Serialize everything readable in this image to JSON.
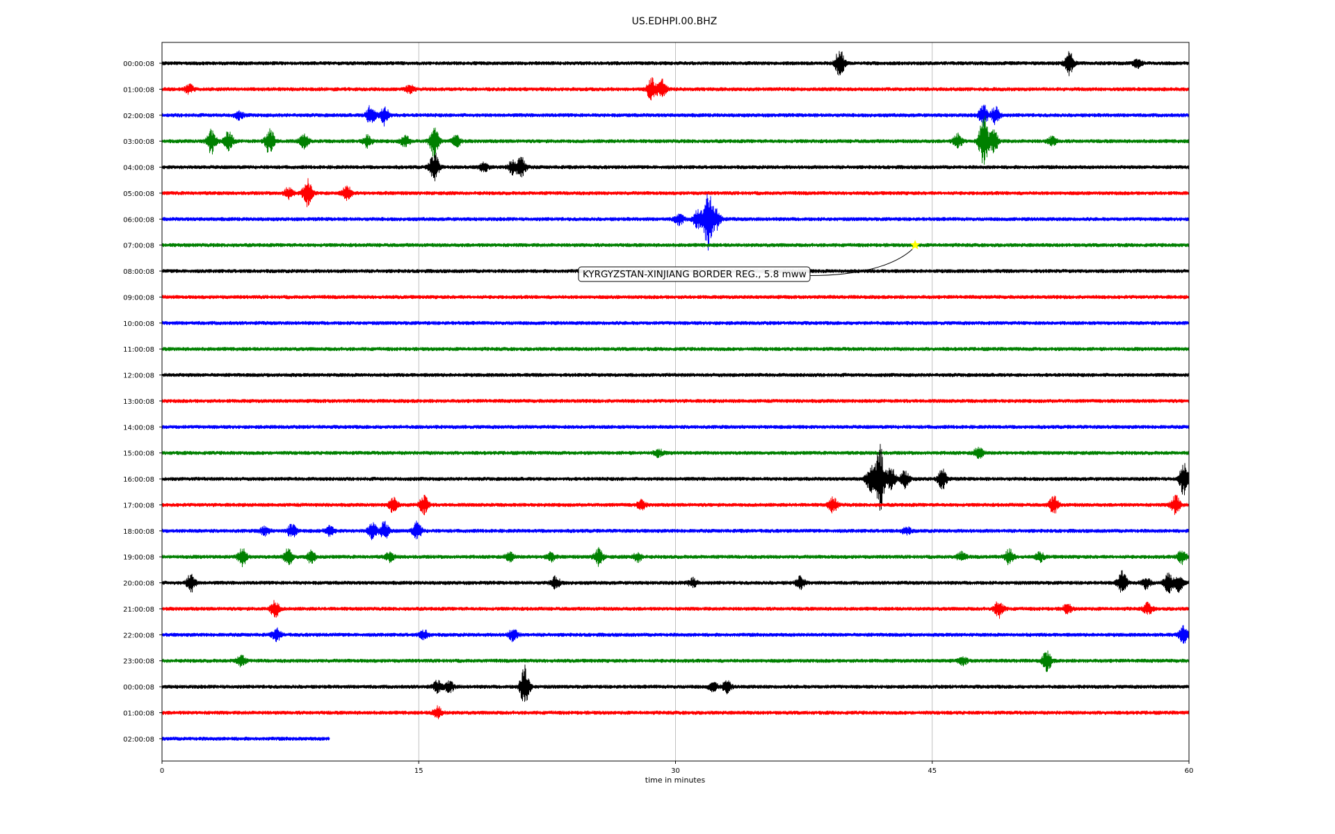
{
  "chart_data": {
    "type": "line",
    "title": "US.EDHPI.00.BHZ",
    "xlabel": "time in minutes",
    "ylabel": "",
    "xlim": [
      0,
      60
    ],
    "xticks": [
      0,
      15,
      30,
      45,
      60
    ],
    "grid": "vertical lines at x = 15, 30, 45",
    "trace_colors": [
      "#000000",
      "#ff0000",
      "#0000ff",
      "#008000"
    ],
    "rows": [
      {
        "label": "00:00:08",
        "end": 60,
        "events": [
          {
            "x": 39.6,
            "amp": 20
          },
          {
            "x": 53.0,
            "amp": 16
          },
          {
            "x": 57.0,
            "amp": 6
          }
        ]
      },
      {
        "label": "01:00:08",
        "end": 60,
        "events": [
          {
            "x": 1.6,
            "amp": 6
          },
          {
            "x": 14.5,
            "amp": 5
          },
          {
            "x": 28.6,
            "amp": 16
          },
          {
            "x": 29.2,
            "amp": 14
          }
        ]
      },
      {
        "label": "02:00:08",
        "end": 60,
        "events": [
          {
            "x": 4.5,
            "amp": 5
          },
          {
            "x": 12.2,
            "amp": 14
          },
          {
            "x": 13.0,
            "amp": 14
          },
          {
            "x": 48.0,
            "amp": 14
          },
          {
            "x": 48.7,
            "amp": 12
          }
        ]
      },
      {
        "label": "03:00:08",
        "end": 60,
        "events": [
          {
            "x": 2.9,
            "amp": 18
          },
          {
            "x": 3.9,
            "amp": 14
          },
          {
            "x": 6.3,
            "amp": 20
          },
          {
            "x": 8.3,
            "amp": 10
          },
          {
            "x": 12.0,
            "amp": 8
          },
          {
            "x": 14.2,
            "amp": 8
          },
          {
            "x": 15.9,
            "amp": 22
          },
          {
            "x": 17.2,
            "amp": 8
          },
          {
            "x": 46.5,
            "amp": 10
          },
          {
            "x": 48.0,
            "amp": 40
          },
          {
            "x": 48.6,
            "amp": 16
          },
          {
            "x": 52.0,
            "amp": 6
          }
        ]
      },
      {
        "label": "04:00:08",
        "end": 60,
        "events": [
          {
            "x": 15.9,
            "amp": 22
          },
          {
            "x": 18.8,
            "amp": 6
          },
          {
            "x": 20.5,
            "amp": 10
          },
          {
            "x": 21.0,
            "amp": 14
          }
        ]
      },
      {
        "label": "05:00:08",
        "end": 60,
        "events": [
          {
            "x": 7.4,
            "amp": 8
          },
          {
            "x": 8.5,
            "amp": 20
          },
          {
            "x": 10.8,
            "amp": 10
          }
        ]
      },
      {
        "label": "06:00:08",
        "end": 60,
        "events": [
          {
            "x": 30.2,
            "amp": 8
          },
          {
            "x": 31.3,
            "amp": 14
          },
          {
            "x": 31.9,
            "amp": 42
          },
          {
            "x": 32.4,
            "amp": 14
          }
        ]
      },
      {
        "label": "07:00:08",
        "end": 60,
        "events": []
      },
      {
        "label": "08:00:08",
        "end": 60,
        "events": []
      },
      {
        "label": "09:00:08",
        "end": 60,
        "events": []
      },
      {
        "label": "10:00:08",
        "end": 60,
        "events": []
      },
      {
        "label": "11:00:08",
        "end": 60,
        "events": []
      },
      {
        "label": "12:00:08",
        "end": 60,
        "events": []
      },
      {
        "label": "13:00:08",
        "end": 60,
        "events": []
      },
      {
        "label": "14:00:08",
        "end": 60,
        "events": []
      },
      {
        "label": "15:00:08",
        "end": 60,
        "events": [
          {
            "x": 29.0,
            "amp": 5
          },
          {
            "x": 47.7,
            "amp": 8
          }
        ]
      },
      {
        "label": "16:00:08",
        "end": 60,
        "events": [
          {
            "x": 41.4,
            "amp": 18
          },
          {
            "x": 41.95,
            "amp": 48
          },
          {
            "x": 42.6,
            "amp": 16
          },
          {
            "x": 43.4,
            "amp": 12
          },
          {
            "x": 45.6,
            "amp": 14
          },
          {
            "x": 59.7,
            "amp": 22
          }
        ]
      },
      {
        "label": "17:00:08",
        "end": 60,
        "events": [
          {
            "x": 13.5,
            "amp": 10
          },
          {
            "x": 15.3,
            "amp": 14
          },
          {
            "x": 28.0,
            "amp": 6
          },
          {
            "x": 39.2,
            "amp": 10
          },
          {
            "x": 52.1,
            "amp": 12
          },
          {
            "x": 59.2,
            "amp": 14
          }
        ]
      },
      {
        "label": "18:00:08",
        "end": 60,
        "events": [
          {
            "x": 6.0,
            "amp": 6
          },
          {
            "x": 7.6,
            "amp": 10
          },
          {
            "x": 9.8,
            "amp": 6
          },
          {
            "x": 12.3,
            "amp": 12
          },
          {
            "x": 13.0,
            "amp": 12
          },
          {
            "x": 14.9,
            "amp": 12
          },
          {
            "x": 43.5,
            "amp": 5
          }
        ]
      },
      {
        "label": "19:00:08",
        "end": 60,
        "events": [
          {
            "x": 4.7,
            "amp": 12
          },
          {
            "x": 7.4,
            "amp": 12
          },
          {
            "x": 8.7,
            "amp": 8
          },
          {
            "x": 13.3,
            "amp": 6
          },
          {
            "x": 20.3,
            "amp": 6
          },
          {
            "x": 22.7,
            "amp": 6
          },
          {
            "x": 25.5,
            "amp": 12
          },
          {
            "x": 27.8,
            "amp": 6
          },
          {
            "x": 46.7,
            "amp": 6
          },
          {
            "x": 49.5,
            "amp": 10
          },
          {
            "x": 51.3,
            "amp": 6
          },
          {
            "x": 59.6,
            "amp": 10
          }
        ]
      },
      {
        "label": "20:00:08",
        "end": 60,
        "events": [
          {
            "x": 1.7,
            "amp": 12
          },
          {
            "x": 23.0,
            "amp": 8
          },
          {
            "x": 31.0,
            "amp": 6
          },
          {
            "x": 37.3,
            "amp": 8
          },
          {
            "x": 56.1,
            "amp": 16
          },
          {
            "x": 57.5,
            "amp": 8
          },
          {
            "x": 58.8,
            "amp": 14
          },
          {
            "x": 59.4,
            "amp": 12
          }
        ]
      },
      {
        "label": "21:00:08",
        "end": 60,
        "events": [
          {
            "x": 6.6,
            "amp": 12
          },
          {
            "x": 48.9,
            "amp": 12
          },
          {
            "x": 52.9,
            "amp": 6
          },
          {
            "x": 57.6,
            "amp": 8
          }
        ]
      },
      {
        "label": "22:00:08",
        "end": 60,
        "events": [
          {
            "x": 6.7,
            "amp": 8
          },
          {
            "x": 15.3,
            "amp": 6
          },
          {
            "x": 20.5,
            "amp": 8
          },
          {
            "x": 59.7,
            "amp": 12
          }
        ]
      },
      {
        "label": "23:00:08",
        "end": 60,
        "events": [
          {
            "x": 4.6,
            "amp": 8
          },
          {
            "x": 46.8,
            "amp": 5
          },
          {
            "x": 51.7,
            "amp": 14
          }
        ]
      },
      {
        "label": "00:00:08",
        "end": 60,
        "events": [
          {
            "x": 16.1,
            "amp": 8
          },
          {
            "x": 16.8,
            "amp": 8
          },
          {
            "x": 21.2,
            "amp": 30
          },
          {
            "x": 32.2,
            "amp": 6
          },
          {
            "x": 33.0,
            "amp": 8
          }
        ]
      },
      {
        "label": "01:00:08",
        "end": 60,
        "events": [
          {
            "x": 16.1,
            "amp": 8
          }
        ]
      },
      {
        "label": "02:00:08",
        "end": 9.8,
        "events": []
      }
    ],
    "annotations": [
      {
        "text": "KYRGYZSTAN-XINJIANG BORDER REG., 5.8 mww",
        "x": 44.0,
        "row": 7,
        "marker": "star",
        "marker_color": "#ffff00"
      }
    ]
  }
}
